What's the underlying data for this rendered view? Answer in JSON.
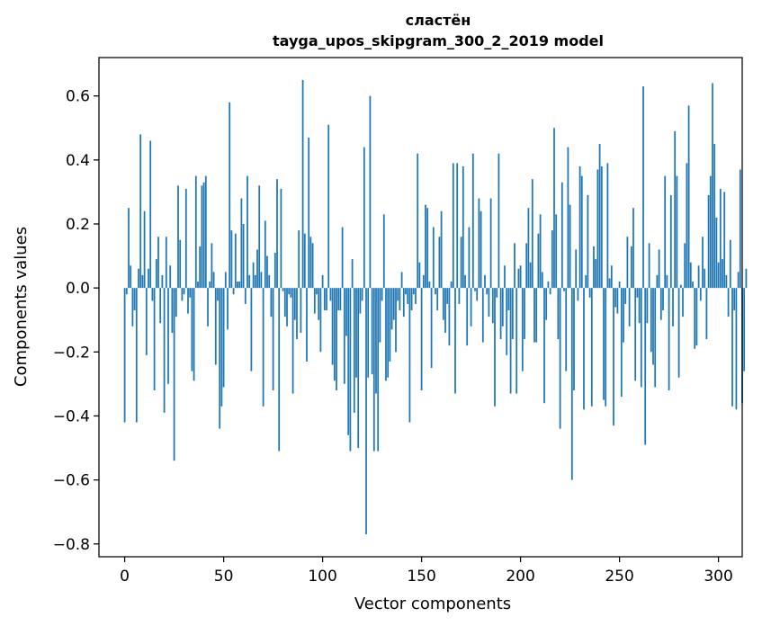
{
  "chart_data": {
    "type": "bar",
    "title": "сластён",
    "subtitle": "tayga_upos_skipgram_300_2_2019 model",
    "xlabel": "Vector components",
    "ylabel": "Components values",
    "xlim": [
      -13,
      312
    ],
    "ylim": [
      -0.84,
      0.72
    ],
    "xticks": [
      0,
      50,
      100,
      150,
      200,
      250,
      300
    ],
    "yticks": [
      -0.8,
      -0.6,
      -0.4,
      -0.2,
      0.0,
      0.2,
      0.4,
      0.6
    ],
    "ytick_labels": [
      "−0.8",
      "−0.6",
      "−0.4",
      "−0.2",
      "0.0",
      "0.2",
      "0.4",
      "0.6"
    ],
    "bar_color": "#1f77b4",
    "series": [
      {
        "name": "сластён",
        "values": [
          -0.42,
          -0.02,
          0.25,
          0.07,
          -0.12,
          -0.07,
          -0.42,
          0.06,
          0.48,
          0.04,
          0.24,
          -0.21,
          0.06,
          0.46,
          -0.04,
          -0.32,
          0.09,
          0.16,
          -0.11,
          0.04,
          -0.39,
          0.16,
          -0.3,
          0.07,
          -0.14,
          -0.54,
          -0.09,
          0.32,
          0.15,
          -0.04,
          -0.02,
          0.31,
          -0.08,
          -0.03,
          -0.26,
          -0.29,
          0.35,
          0.02,
          0.13,
          0.32,
          0.33,
          0.35,
          -0.12,
          0.02,
          0.14,
          0.05,
          -0.24,
          -0.04,
          -0.44,
          -0.37,
          -0.31,
          0.05,
          -0.13,
          0.58,
          0.18,
          -0.02,
          0.17,
          0.02,
          0.02,
          0.28,
          0.2,
          -0.05,
          0.35,
          0.04,
          -0.26,
          0.08,
          0.04,
          0.12,
          0.32,
          0.05,
          -0.37,
          0.21,
          0.1,
          0.04,
          -0.09,
          -0.32,
          0.11,
          0.34,
          -0.51,
          0.31,
          -0.01,
          -0.09,
          -0.12,
          -0.02,
          -0.03,
          -0.33,
          -0.1,
          -0.16,
          0.18,
          -0.14,
          0.65,
          0.17,
          -0.23,
          0.47,
          0.16,
          0.14,
          -0.08,
          -0.02,
          -0.1,
          -0.2,
          0.04,
          -0.07,
          -0.07,
          0.51,
          -0.04,
          -0.24,
          -0.29,
          -0.32,
          -0.07,
          -0.07,
          0.19,
          -0.3,
          -0.15,
          -0.46,
          -0.51,
          0.09,
          -0.39,
          -0.28,
          -0.5,
          -0.08,
          -0.04,
          0.44,
          -0.77,
          -0.28,
          0.6,
          -0.27,
          -0.51,
          -0.33,
          -0.51,
          -0.17,
          -0.04,
          0.23,
          -0.29,
          -0.28,
          -0.23,
          -0.13,
          -0.1,
          -0.2,
          -0.04,
          -0.07,
          0.05,
          -0.09,
          -0.02,
          -0.05,
          -0.42,
          -0.07,
          -0.02,
          -0.05,
          0.42,
          0.08,
          -0.32,
          0.04,
          0.26,
          0.25,
          0.02,
          -0.25,
          0.19,
          -0.02,
          -0.07,
          0.16,
          0.24,
          -0.1,
          -0.14,
          -0.05,
          -0.18,
          0.02,
          0.39,
          -0.33,
          0.39,
          -0.05,
          0.16,
          0.38,
          0.04,
          -0.18,
          0.19,
          -0.12,
          0.42,
          -0.01,
          -0.04,
          0.28,
          0.24,
          -0.17,
          0.04,
          -0.02,
          -0.09,
          0.28,
          -0.11,
          -0.37,
          -0.03,
          0.42,
          -0.16,
          -0.12,
          0.07,
          -0.21,
          -0.07,
          -0.33,
          -0.16,
          0.14,
          -0.33,
          0.06,
          0.07,
          -0.26,
          -0.16,
          0.14,
          0.25,
          0.08,
          0.34,
          -0.17,
          -0.17,
          0.17,
          0.23,
          0.05,
          -0.36,
          -0.1,
          0.02,
          -0.02,
          0.18,
          0.5,
          0.23,
          -0.16,
          -0.44,
          0.33,
          -0.01,
          -0.26,
          0.44,
          0.26,
          -0.6,
          -0.32,
          0.12,
          -0.04,
          0.38,
          0.35,
          -0.38,
          0.04,
          0.29,
          -0.03,
          -0.37,
          0.13,
          0.09,
          0.37,
          0.45,
          0.38,
          -0.35,
          -0.37,
          0.39,
          0.03,
          0.07,
          -0.43,
          -0.06,
          -0.08,
          0.02,
          -0.34,
          -0.17,
          -0.05,
          0.16,
          -0.12,
          0.13,
          0.25,
          -0.29,
          -0.03,
          -0.11,
          -0.31,
          0.63,
          -0.49,
          -0.11,
          0.14,
          -0.2,
          -0.24,
          -0.31,
          0.04,
          0.12,
          -0.1,
          -0.07,
          0.35,
          0.04,
          -0.32,
          0.29,
          -0.12,
          0.49,
          0.35,
          -0.28,
          0.01,
          -0.09,
          0.14,
          0.39,
          0.57,
          0.08,
          0.02,
          -0.19,
          -0.18,
          0.07,
          -0.04,
          0.16,
          0.06,
          -0.16,
          0.29,
          0.35,
          0.64,
          0.45,
          0.22,
          0.08,
          0.31,
          0.09,
          0.3,
          0.04,
          -0.09,
          0.15,
          -0.37,
          -0.07,
          -0.38,
          0.05,
          0.37,
          -0.36,
          -0.26,
          0.06
        ]
      }
    ]
  }
}
